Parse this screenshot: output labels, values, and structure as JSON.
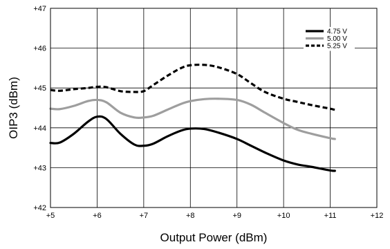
{
  "chart_data": {
    "type": "line",
    "title": "",
    "xlabel": "Output Power (dBm)",
    "ylabel": "OIP3 (dBm)",
    "xlim": [
      5,
      12
    ],
    "ylim": [
      42,
      47
    ],
    "grid": true,
    "legend_position": "top-right",
    "x_ticks": [
      5,
      6,
      7,
      8,
      9,
      10,
      11,
      12
    ],
    "x_tick_labels": [
      "+5",
      "+6",
      "+7",
      "+8",
      "+9",
      "+10",
      "+11",
      "+12"
    ],
    "y_ticks": [
      42,
      43,
      44,
      45,
      46,
      47
    ],
    "y_tick_labels": [
      "+42",
      "+43",
      "+44",
      "+45",
      "+46",
      "+47"
    ],
    "series": [
      {
        "name": "4.75 V",
        "color": "#000000",
        "style": "solid",
        "x": [
          5.0,
          5.2,
          5.5,
          5.8,
          6.0,
          6.2,
          6.5,
          6.8,
          7.0,
          7.2,
          7.5,
          7.8,
          8.0,
          8.3,
          8.6,
          9.0,
          9.3,
          9.6,
          10.0,
          10.3,
          10.6,
          11.0,
          11.1
        ],
        "y": [
          43.62,
          43.63,
          43.85,
          44.15,
          44.28,
          44.22,
          43.85,
          43.58,
          43.55,
          43.6,
          43.78,
          43.93,
          43.98,
          43.97,
          43.88,
          43.72,
          43.55,
          43.38,
          43.18,
          43.08,
          43.02,
          42.93,
          42.92
        ]
      },
      {
        "name": "5.00 V",
        "color": "#9e9e9e",
        "style": "solid",
        "x": [
          5.0,
          5.2,
          5.5,
          5.8,
          6.0,
          6.2,
          6.5,
          6.8,
          7.0,
          7.2,
          7.5,
          7.8,
          8.0,
          8.3,
          8.6,
          9.0,
          9.3,
          9.6,
          10.0,
          10.3,
          10.6,
          11.0,
          11.1
        ],
        "y": [
          44.48,
          44.47,
          44.55,
          44.67,
          44.7,
          44.64,
          44.38,
          44.26,
          44.26,
          44.3,
          44.45,
          44.6,
          44.67,
          44.72,
          44.73,
          44.7,
          44.58,
          44.38,
          44.12,
          43.95,
          43.85,
          43.74,
          43.72
        ]
      },
      {
        "name": "5.25 V",
        "color": "#000000",
        "style": "dashed",
        "x": [
          5.0,
          5.2,
          5.5,
          5.8,
          6.0,
          6.2,
          6.5,
          6.8,
          7.0,
          7.2,
          7.5,
          7.8,
          8.0,
          8.3,
          8.6,
          9.0,
          9.3,
          9.6,
          10.0,
          10.3,
          10.6,
          11.0,
          11.1
        ],
        "y": [
          44.95,
          44.93,
          44.97,
          45.0,
          45.03,
          45.02,
          44.92,
          44.9,
          44.92,
          45.07,
          45.3,
          45.5,
          45.57,
          45.58,
          45.52,
          45.35,
          45.12,
          44.9,
          44.73,
          44.65,
          44.57,
          44.48,
          44.45
        ]
      }
    ]
  }
}
